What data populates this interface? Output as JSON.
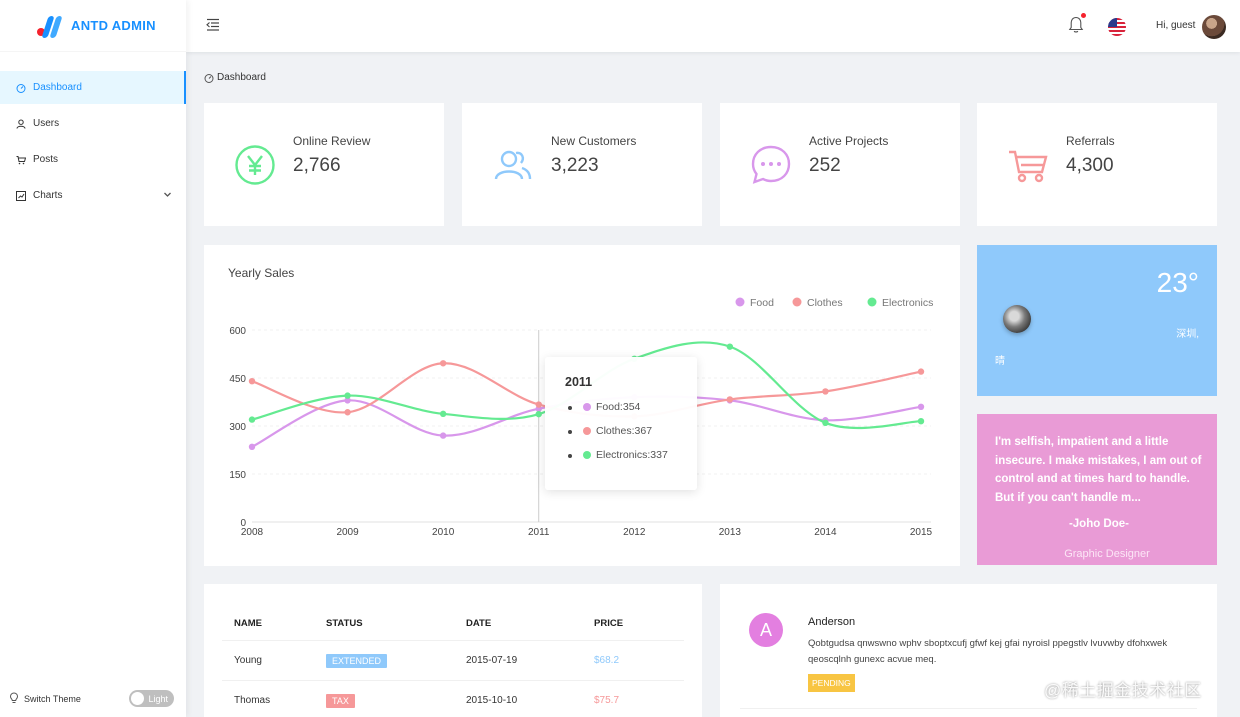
{
  "app": {
    "logo_text": "ANTD ADMIN"
  },
  "sidebar": {
    "items": [
      {
        "label": "Dashboard",
        "icon": "dashboard-icon",
        "active": true
      },
      {
        "label": "Users",
        "icon": "user-icon"
      },
      {
        "label": "Posts",
        "icon": "cart-icon"
      },
      {
        "label": "Charts",
        "icon": "chart-icon",
        "expandable": true
      }
    ],
    "switch_theme_label": "Switch Theme",
    "theme_toggle_label": "Light"
  },
  "header": {
    "greeting": "Hi, guest",
    "notification_dot": true,
    "language_flag": "us-flag-icon"
  },
  "breadcrumb": {
    "label": "Dashboard"
  },
  "stats": [
    {
      "title": "Online Review",
      "value": "2,766",
      "icon": "yen-icon",
      "color": "#64ea91"
    },
    {
      "title": "New Customers",
      "value": "3,223",
      "icon": "team-icon",
      "color": "#8fc9fb"
    },
    {
      "title": "Active Projects",
      "value": "252",
      "icon": "message-icon",
      "color": "#d897eb"
    },
    {
      "title": "Referrals",
      "value": "4,300",
      "icon": "shopping-cart-icon",
      "color": "#f69899"
    }
  ],
  "sales": {
    "title": "Yearly Sales",
    "tooltip": {
      "year": "2011",
      "rows": [
        {
          "label": "Food:354",
          "color": "#d897eb"
        },
        {
          "label": "Clothes:367",
          "color": "#f69899"
        },
        {
          "label": "Electronics:337",
          "color": "#64ea91"
        }
      ]
    }
  },
  "chart_data": {
    "type": "line",
    "title": "Yearly Sales",
    "x": [
      "2008",
      "2009",
      "2010",
      "2011",
      "2012",
      "2013",
      "2014",
      "2015"
    ],
    "y_ticks": [
      "0",
      "150",
      "300",
      "450",
      "600"
    ],
    "ylim": [
      0,
      600
    ],
    "grid": true,
    "legend": "top-right",
    "series": [
      {
        "name": "Food",
        "color": "#d897eb",
        "values": [
          235,
          380,
          270,
          354,
          390,
          380,
          318,
          360
        ]
      },
      {
        "name": "Clothes",
        "color": "#f69899",
        "values": [
          440,
          343,
          496,
          367,
          330,
          383,
          408,
          470
        ]
      },
      {
        "name": "Electronics",
        "color": "#64ea91",
        "values": [
          320,
          395,
          338,
          337,
          510,
          548,
          310,
          315
        ]
      }
    ]
  },
  "weather": {
    "temp": "23°",
    "city": "深圳,",
    "condition": "晴",
    "icon": "moon-icon"
  },
  "quote": {
    "text": "I'm selfish, impatient and a little insecure. I make mistakes, I am out of control and at times hard to handle. But if you can't handle m...",
    "author": "-Joho Doe-",
    "role": "Graphic Designer"
  },
  "table": {
    "headers": [
      "NAME",
      "STATUS",
      "DATE",
      "PRICE"
    ],
    "rows": [
      {
        "name": "Young",
        "status": "EXTENDED",
        "status_color": "#8fc9fb",
        "date": "2015-07-19",
        "price": "$68.2",
        "price_color": "#8fc9fb"
      },
      {
        "name": "Thomas",
        "status": "TAX",
        "status_color": "#f69899",
        "date": "2015-10-10",
        "price": "$75.7",
        "price_color": "#f69899"
      }
    ]
  },
  "comment": {
    "avatar_letter": "A",
    "name": "Anderson",
    "text": "Qobtgudsa qnwswno wphv sboptxcufj gfwf kej gfai nyroisl ppegstlv lvuvwby dfohxwek qeoscqlnh gunexc acvue meq.",
    "status": "PENDING"
  },
  "watermark": "@稀土掘金技术社区"
}
